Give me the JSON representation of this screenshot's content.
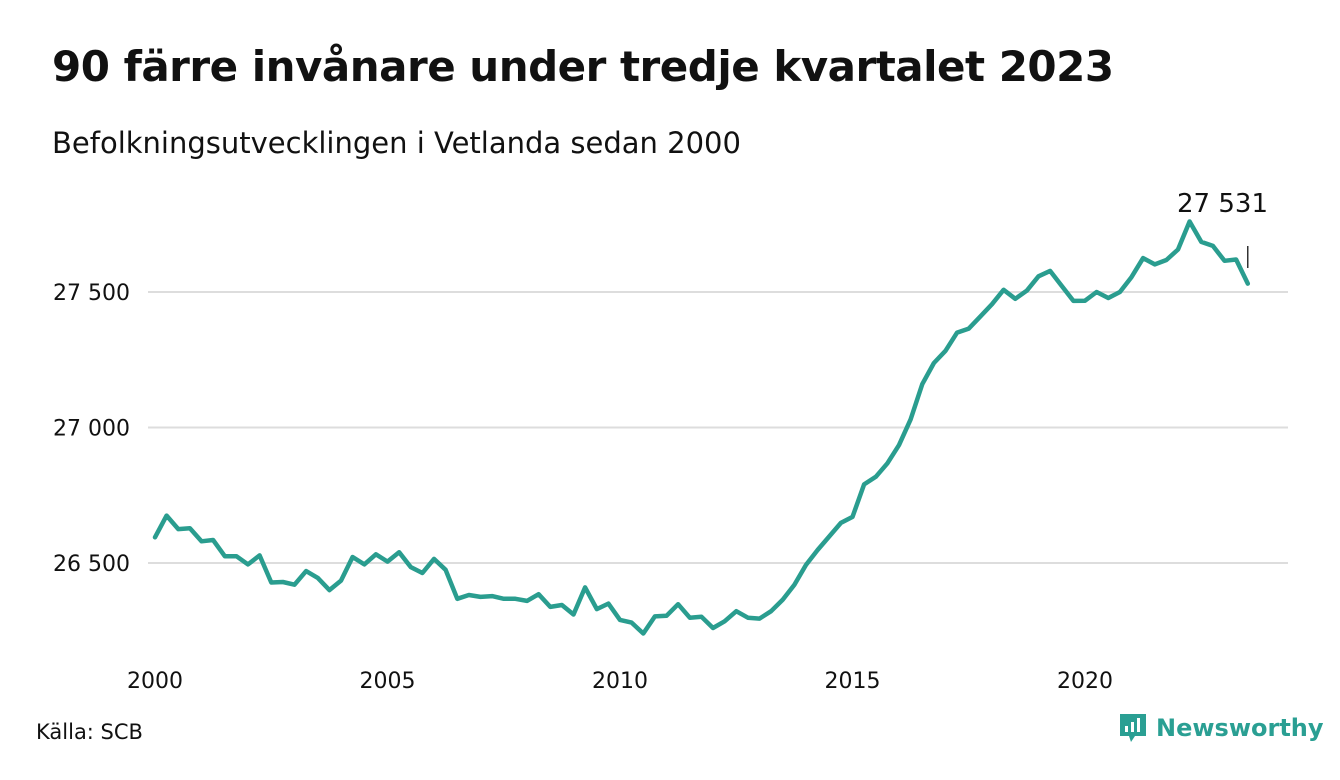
{
  "title": "90 färre invånare under tredje kvartalet 2023",
  "subtitle": "Befolkningsutvecklingen i Vetlanda sedan 2000",
  "source": "Källa: SCB",
  "brand": "Newsworthy",
  "colors": {
    "line": "#2a9d8f",
    "grid": "#dddddd",
    "brand": "#2a9f93"
  },
  "chart_data": {
    "type": "line",
    "title": "90 färre invånare under tredje kvartalet 2023",
    "subtitle": "Befolkningsutvecklingen i Vetlanda sedan 2000",
    "xlabel": "",
    "ylabel": "",
    "xlim": [
      2000,
      2024
    ],
    "ylim": [
      26230,
      27800
    ],
    "x_ticks": [
      2000,
      2005,
      2010,
      2015,
      2020
    ],
    "y_ticks": [
      26500,
      27000,
      27500
    ],
    "y_tick_labels": [
      "26 500",
      "27 000",
      "27 500"
    ],
    "grid": true,
    "annotation": {
      "x": 2023.5,
      "value": 27531,
      "label": "27 531"
    },
    "series": [
      {
        "x": [
          2000.0,
          2000.25,
          2000.5,
          2000.75,
          2001.0,
          2001.25,
          2001.5,
          2001.75,
          2002.0,
          2002.25,
          2002.5,
          2002.75,
          2003.0,
          2003.25,
          2003.5,
          2003.75,
          2004.0,
          2004.25,
          2004.5,
          2004.75,
          2005.0,
          2005.25,
          2005.5,
          2005.75,
          2006.0,
          2006.25,
          2006.5,
          2006.75,
          2007.0,
          2007.25,
          2007.5,
          2007.75,
          2008.0,
          2008.25,
          2008.5,
          2008.75,
          2009.0,
          2009.25,
          2009.5,
          2009.75,
          2010.0,
          2010.25,
          2010.5,
          2010.75,
          2011.0,
          2011.25,
          2011.5,
          2011.75,
          2012.0,
          2012.25,
          2012.5,
          2012.75,
          2013.0,
          2013.25,
          2013.5,
          2013.75,
          2014.0,
          2014.25,
          2014.5,
          2014.75,
          2015.0,
          2015.25,
          2015.5,
          2015.75,
          2016.0,
          2016.25,
          2016.5,
          2016.75,
          2017.0,
          2017.25,
          2017.5,
          2017.75,
          2018.0,
          2018.25,
          2018.5,
          2018.75,
          2019.0,
          2019.25,
          2019.5,
          2019.75,
          2020.0,
          2020.25,
          2020.5,
          2020.75,
          2021.0,
          2021.25,
          2021.5,
          2021.75,
          2022.0,
          2022.25,
          2022.5,
          2022.75,
          2023.0,
          2023.25,
          2023.5
        ],
        "values": [
          26595,
          26675,
          26625,
          26628,
          26580,
          26585,
          26525,
          26525,
          26495,
          26528,
          26428,
          26430,
          26420,
          26470,
          26445,
          26400,
          26435,
          26522,
          26495,
          26532,
          26505,
          26540,
          26485,
          26463,
          26515,
          26475,
          26368,
          26382,
          26375,
          26378,
          26368,
          26368,
          26360,
          26385,
          26338,
          26345,
          26310,
          26410,
          26330,
          26350,
          26290,
          26280,
          26240,
          26303,
          26305,
          26348,
          26298,
          26302,
          26260,
          26285,
          26322,
          26298,
          26295,
          26322,
          26365,
          26420,
          26493,
          26548,
          26598,
          26648,
          26670,
          26790,
          26818,
          26868,
          26935,
          27030,
          27160,
          27238,
          27283,
          27350,
          27365,
          27410,
          27455,
          27508,
          27475,
          27505,
          27558,
          27578,
          27522,
          27467,
          27468,
          27500,
          27478,
          27500,
          27555,
          27625,
          27602,
          27618,
          27657,
          27760,
          27685,
          27670,
          27615,
          27620,
          27531
        ]
      }
    ]
  }
}
